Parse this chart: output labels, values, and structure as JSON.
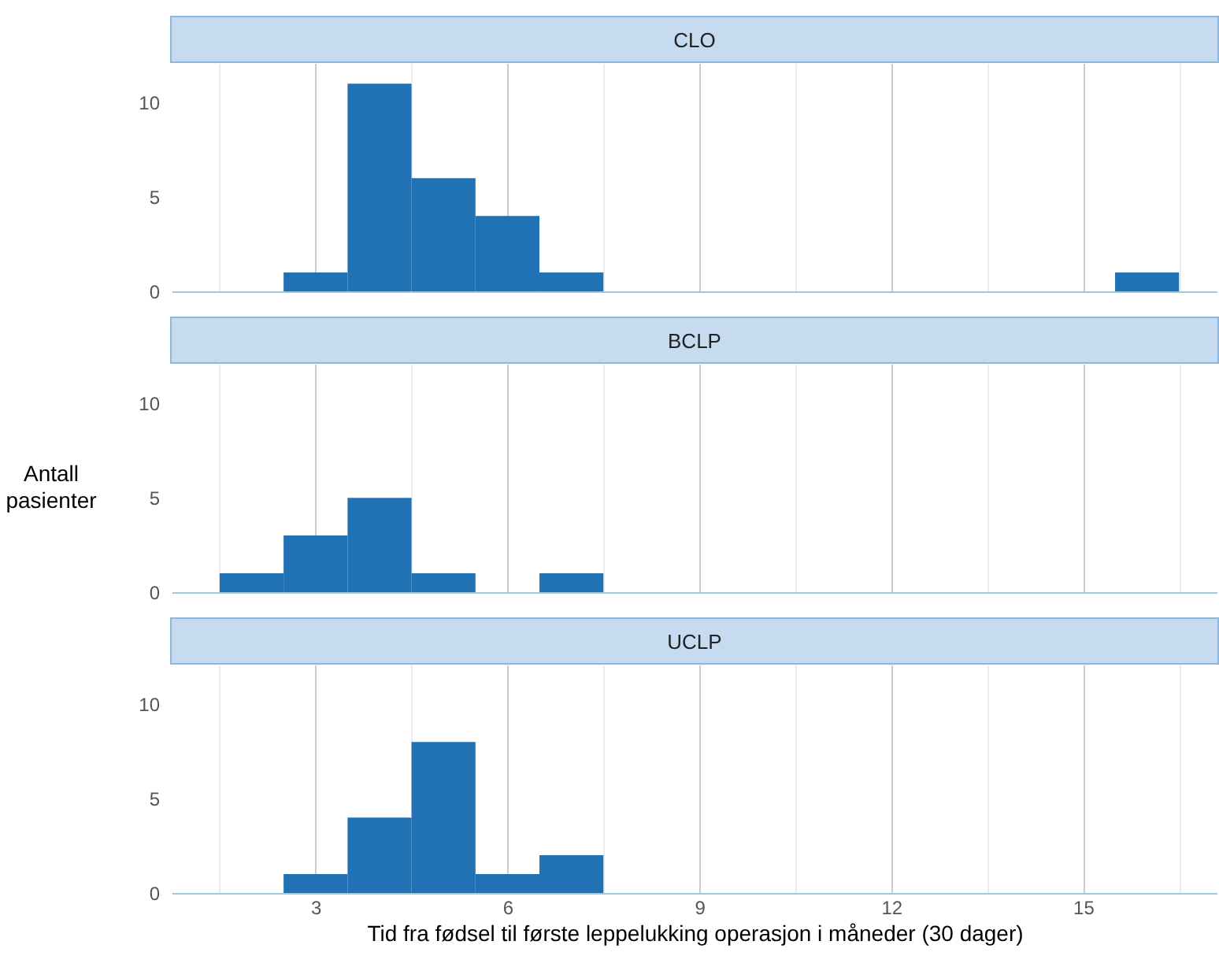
{
  "chart_data": [
    {
      "type": "histogram",
      "title": "CLO",
      "bins": [
        1.5,
        2.5,
        3.5,
        4.5,
        5.5,
        6.5,
        7.5,
        8.5,
        9.5,
        10.5,
        11.5,
        12.5,
        13.5,
        14.5,
        15.5,
        16.5
      ],
      "values": [
        0,
        1,
        11,
        6,
        4,
        1,
        0,
        0,
        0,
        0,
        0,
        0,
        0,
        0,
        1
      ],
      "color": "#2171b5",
      "xlim": [
        0.75,
        17.1
      ],
      "xticks": [
        {
          "value": 1.5,
          "label": null
        },
        3,
        {
          "value": 4.5,
          "label": null
        },
        6,
        {
          "value": 7.5,
          "label": null
        },
        9,
        {
          "value": 10.5,
          "label": null
        },
        12,
        {
          "value": 13.5,
          "label": null
        },
        15,
        {
          "value": 16.5,
          "label": null
        }
      ],
      "ylim": [
        0,
        12.1
      ],
      "yticks": [
        0,
        5,
        10
      ],
      "grid": "x",
      "tick_labels": "y"
    },
    {
      "type": "histogram",
      "title": "BCLP",
      "ylabel": "Antall pasienter",
      "bins": [
        1.5,
        2.5,
        3.5,
        4.5,
        5.5,
        6.5,
        7.5,
        8.5,
        9.5,
        10.5,
        11.5,
        12.5,
        13.5,
        14.5,
        15.5,
        16.5
      ],
      "values": [
        1,
        3,
        5,
        1,
        0,
        1,
        0,
        0,
        0,
        0,
        0,
        0,
        0,
        0,
        0
      ],
      "color": "#2171b5",
      "xlim": [
        0.75,
        17.1
      ],
      "xticks": [
        {
          "value": 1.5,
          "label": null
        },
        3,
        {
          "value": 4.5,
          "label": null
        },
        6,
        {
          "value": 7.5,
          "label": null
        },
        9,
        {
          "value": 10.5,
          "label": null
        },
        12,
        {
          "value": 13.5,
          "label": null
        },
        15,
        {
          "value": 16.5,
          "label": null
        }
      ],
      "ylim": [
        0,
        12.1
      ],
      "yticks": [
        0,
        5,
        10
      ],
      "grid": "x",
      "tick_labels": "y"
    },
    {
      "type": "histogram",
      "title": "UCLP",
      "xlabel": "Tid fra fødsel til første leppelukking operasjon i måneder (30 dager)",
      "bins": [
        1.5,
        2.5,
        3.5,
        4.5,
        5.5,
        6.5,
        7.5,
        8.5,
        9.5,
        10.5,
        11.5,
        12.5,
        13.5,
        14.5,
        15.5,
        16.5
      ],
      "values": [
        0,
        1,
        4,
        8,
        1,
        2,
        0,
        0,
        0,
        0,
        0,
        0,
        0,
        0,
        0
      ],
      "color": "#2171b5",
      "xlim": [
        0.75,
        17.1
      ],
      "xticks": [
        {
          "value": 1.5,
          "label": null
        },
        3,
        {
          "value": 4.5,
          "label": null
        },
        6,
        {
          "value": 7.5,
          "label": null
        },
        9,
        {
          "value": 10.5,
          "label": null
        },
        12,
        {
          "value": 13.5,
          "label": null
        },
        15,
        {
          "value": 16.5,
          "label": null
        }
      ],
      "ylim": [
        0,
        12.1
      ],
      "yticks": [
        0,
        5,
        10
      ],
      "grid": "x"
    }
  ]
}
